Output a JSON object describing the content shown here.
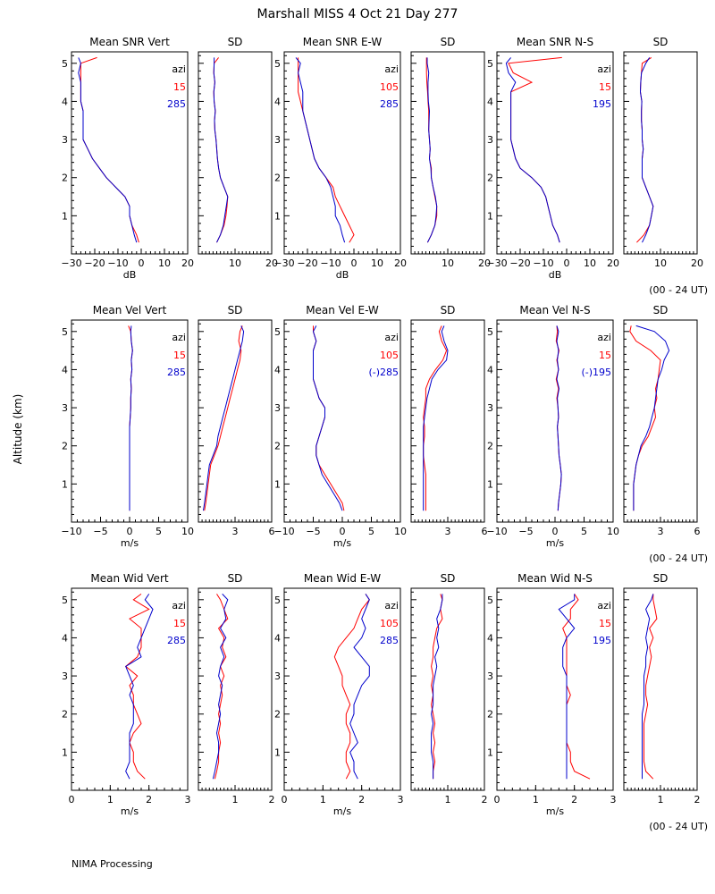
{
  "header": {
    "title": "Marshall MISS    4 Oct 21 Day 277",
    "ylabel": "Altitude (km)",
    "footer": "NIMA Processing"
  },
  "colors": {
    "series_a": "#ff0000",
    "series_b": "#0000cc",
    "axes": "#000000"
  },
  "rows": [
    {
      "time_label": "(00 - 24 UT)",
      "panels": [
        {
          "title": "Mean SNR Vert",
          "type": "mean",
          "xlim": [
            -30,
            20
          ],
          "xticks": [
            -30,
            -20,
            -10,
            0,
            10,
            20
          ],
          "xlabel": "dB",
          "legend": {
            "head": "azi",
            "a": "15",
            "b": "285"
          }
        },
        {
          "title": "SD",
          "type": "sd",
          "xlim": [
            0,
            20
          ],
          "xticks": [
            10,
            20
          ],
          "xlabel": ""
        },
        {
          "title": "Mean SNR E-W",
          "type": "mean",
          "xlim": [
            -30,
            20
          ],
          "xticks": [
            -30,
            -20,
            -10,
            0,
            10,
            20
          ],
          "xlabel": "dB",
          "legend": {
            "head": "azi",
            "a": "105",
            "b": "285"
          }
        },
        {
          "title": "SD",
          "type": "sd",
          "xlim": [
            0,
            20
          ],
          "xticks": [
            10,
            20
          ],
          "xlabel": ""
        },
        {
          "title": "Mean SNR N-S",
          "type": "mean",
          "xlim": [
            -30,
            20
          ],
          "xticks": [
            -30,
            -20,
            -10,
            0,
            10,
            20
          ],
          "xlabel": "dB",
          "legend": {
            "head": "azi",
            "a": "15",
            "b": "195"
          }
        },
        {
          "title": "SD",
          "type": "sd",
          "xlim": [
            0,
            20
          ],
          "xticks": [
            10,
            20
          ],
          "xlabel": ""
        }
      ]
    },
    {
      "time_label": "(00 - 24 UT)",
      "panels": [
        {
          "title": "Mean Vel Vert",
          "type": "mean",
          "xlim": [
            -10,
            10
          ],
          "xticks": [
            -10,
            -5,
            0,
            5,
            10
          ],
          "xlabel": "m/s",
          "legend": {
            "head": "azi",
            "a": "15",
            "b": "285"
          }
        },
        {
          "title": "SD",
          "type": "sd",
          "xlim": [
            0,
            6
          ],
          "xticks": [
            3,
            6
          ],
          "xlabel": ""
        },
        {
          "title": "Mean Vel E-W",
          "type": "mean",
          "xlim": [
            -10,
            10
          ],
          "xticks": [
            -10,
            -5,
            0,
            5,
            10
          ],
          "xlabel": "m/s",
          "legend": {
            "head": "azi",
            "a": "105",
            "b": "(-)285"
          }
        },
        {
          "title": "SD",
          "type": "sd",
          "xlim": [
            0,
            6
          ],
          "xticks": [
            3,
            6
          ],
          "xlabel": ""
        },
        {
          "title": "Mean Vel N-S",
          "type": "mean",
          "xlim": [
            -10,
            10
          ],
          "xticks": [
            -10,
            -5,
            0,
            5,
            10
          ],
          "xlabel": "m/s",
          "legend": {
            "head": "azi",
            "a": "15",
            "b": "(-)195"
          }
        },
        {
          "title": "SD",
          "type": "sd",
          "xlim": [
            0,
            6
          ],
          "xticks": [
            3,
            6
          ],
          "xlabel": ""
        }
      ]
    },
    {
      "time_label": "(00 - 24 UT)",
      "panels": [
        {
          "title": "Mean Wid Vert",
          "type": "mean",
          "xlim": [
            0,
            3
          ],
          "xticks": [
            0,
            1,
            2,
            3
          ],
          "xlabel": "m/s",
          "legend": {
            "head": "azi",
            "a": "15",
            "b": "285"
          }
        },
        {
          "title": "SD",
          "type": "sd",
          "xlim": [
            0,
            2
          ],
          "xticks": [
            1,
            2
          ],
          "xlabel": ""
        },
        {
          "title": "Mean Wid E-W",
          "type": "mean",
          "xlim": [
            0,
            3
          ],
          "xticks": [
            0,
            1,
            2,
            3
          ],
          "xlabel": "m/s",
          "legend": {
            "head": "azi",
            "a": "105",
            "b": "285"
          }
        },
        {
          "title": "SD",
          "type": "sd",
          "xlim": [
            0,
            2
          ],
          "xticks": [
            1,
            2
          ],
          "xlabel": ""
        },
        {
          "title": "Mean Wid N-S",
          "type": "mean",
          "xlim": [
            0,
            3
          ],
          "xticks": [
            0,
            1,
            2,
            3
          ],
          "xlabel": "m/s",
          "legend": {
            "head": "azi",
            "a": "15",
            "b": "195"
          }
        },
        {
          "title": "SD",
          "type": "sd",
          "xlim": [
            0,
            2
          ],
          "xticks": [
            1,
            2
          ],
          "xlabel": ""
        }
      ]
    }
  ],
  "chart_data": {
    "type": "line",
    "ylim": [
      0,
      5.3
    ],
    "yticks": [
      1,
      2,
      3,
      4,
      5
    ],
    "altitudes": [
      0.3,
      0.5,
      0.75,
      1.0,
      1.25,
      1.5,
      1.75,
      2.0,
      2.25,
      2.5,
      2.75,
      3.0,
      3.25,
      3.5,
      3.75,
      4.0,
      4.25,
      4.5,
      4.75,
      5.0,
      5.15
    ],
    "panels": [
      {
        "a": [
          -1,
          -2,
          -4,
          -5,
          -5,
          -7,
          -11,
          -15,
          -18,
          -21,
          -23,
          -25,
          -25,
          -25,
          -25,
          -26,
          -26,
          -26,
          -26,
          -26,
          -19
        ],
        "b": [
          -2,
          -3,
          -4,
          -5,
          -5,
          -7,
          -11,
          -15,
          -18,
          -21,
          -23,
          -25,
          -25,
          -25,
          -25,
          -26,
          -26,
          -26,
          -27,
          -26,
          -27
        ]
      },
      {
        "a": [
          5,
          6,
          7,
          7.5,
          7.8,
          8,
          7,
          6,
          5.5,
          5.2,
          5,
          4.8,
          4.5,
          4.4,
          4.6,
          4.3,
          4.2,
          4.5,
          4.2,
          4.3,
          5.5
        ],
        "b": [
          5,
          6,
          6.8,
          7.2,
          7.6,
          8,
          7,
          6,
          5.5,
          5.2,
          5,
          4.8,
          4.5,
          4.4,
          4.6,
          4.3,
          4.2,
          4.5,
          4.2,
          4.3,
          4.3
        ]
      },
      {
        "a": [
          -2,
          0,
          -2,
          -4,
          -6,
          -8,
          -9,
          -12,
          -15,
          -17,
          -18,
          -19,
          -20,
          -21,
          -22,
          -23,
          -24,
          -24,
          -24,
          -24,
          -24
        ],
        "b": [
          -4,
          -5,
          -6,
          -8,
          -8,
          -9,
          -10,
          -12,
          -15,
          -17,
          -18,
          -19,
          -20,
          -21,
          -22,
          -22,
          -22,
          -23,
          -24,
          -23,
          -25
        ]
      },
      {
        "a": [
          4.5,
          5.5,
          6.5,
          7,
          7,
          6.5,
          6,
          5.5,
          5.5,
          5,
          5.2,
          5,
          4.8,
          4.8,
          4.8,
          4.6,
          4.5,
          4.3,
          4.2,
          4.2,
          4.2
        ],
        "b": [
          4.5,
          5.5,
          6.5,
          6.8,
          7,
          6.6,
          6,
          5.5,
          5.4,
          5,
          5.2,
          5,
          4.8,
          4.9,
          5,
          4.7,
          4.6,
          4.6,
          4.8,
          4.4,
          4.4
        ]
      },
      {
        "a": [
          -3,
          -4,
          -6,
          -7,
          -8,
          -9,
          -11,
          -15,
          -20,
          -22,
          -23,
          -24,
          -24,
          -24,
          -24,
          -24,
          -24,
          -15,
          -23,
          -25,
          -2
        ],
        "b": [
          -3,
          -4,
          -6,
          -7,
          -8,
          -9,
          -11,
          -15,
          -20,
          -22,
          -23,
          -24,
          -24,
          -24,
          -24,
          -24,
          -24,
          -22,
          -25,
          -26,
          -24
        ]
      },
      {
        "a": [
          3.5,
          5.5,
          7,
          7.5,
          8,
          7,
          6,
          5,
          5,
          5,
          5.3,
          5,
          5,
          4.8,
          4.8,
          4.9,
          4.5,
          4.6,
          4.8,
          5,
          7.5
        ],
        "b": [
          5,
          6,
          7,
          7.5,
          8,
          7,
          6,
          5,
          5,
          5,
          5.3,
          5,
          5,
          4.8,
          4.8,
          4.9,
          4.5,
          4.6,
          4.8,
          6,
          7
        ]
      },
      {
        "a": [
          0,
          0,
          0,
          0,
          0,
          0,
          0,
          0,
          0,
          0,
          0.1,
          0.2,
          0.2,
          0.3,
          0.2,
          0.4,
          0.3,
          0.5,
          0.3,
          0.2,
          -0.2
        ],
        "b": [
          0,
          0,
          0,
          0,
          0,
          0,
          0,
          0,
          0,
          0,
          0.1,
          0.2,
          0.2,
          0.3,
          0.2,
          0.4,
          0.3,
          0.5,
          0.3,
          0.2,
          0.3
        ]
      },
      {
        "a": [
          0.5,
          0.6,
          0.7,
          0.8,
          0.9,
          1.0,
          1.3,
          1.6,
          1.8,
          2.0,
          2.2,
          2.4,
          2.6,
          2.8,
          3.0,
          3.2,
          3.4,
          3.5,
          3.3,
          3.4,
          3.6
        ],
        "b": [
          0.4,
          0.5,
          0.6,
          0.7,
          0.8,
          0.9,
          1.2,
          1.5,
          1.6,
          1.8,
          2.0,
          2.2,
          2.4,
          2.6,
          2.8,
          3.0,
          3.2,
          3.4,
          3.6,
          3.7,
          3.5
        ]
      },
      {
        "a": [
          0.3,
          0,
          -1,
          -2,
          -3,
          -4,
          -4.5,
          -4.5,
          -4,
          -3.5,
          -3,
          -3,
          -4,
          -4.5,
          -5,
          -5,
          -5,
          -5,
          -4.5,
          -5,
          -5
        ],
        "b": [
          0,
          -0.5,
          -1.5,
          -2.5,
          -3.5,
          -4,
          -4.5,
          -4.5,
          -4,
          -3.5,
          -3,
          -3,
          -4,
          -4.5,
          -5,
          -5,
          -5,
          -5,
          -4.5,
          -5,
          -4.5
        ]
      },
      {
        "a": [
          1.2,
          1.2,
          1.2,
          1.2,
          1.2,
          1.1,
          1.0,
          1.0,
          1.1,
          1.1,
          1.0,
          1.1,
          1.2,
          1.2,
          1.5,
          2.0,
          2.6,
          2.9,
          2.5,
          2.3,
          2.5
        ],
        "b": [
          1.0,
          1.0,
          1.0,
          1.0,
          1.0,
          1.0,
          1.0,
          1.0,
          1.0,
          1.0,
          1.1,
          1.2,
          1.3,
          1.5,
          1.7,
          2.2,
          2.9,
          3.0,
          2.7,
          2.5,
          2.7
        ]
      },
      {
        "a": [
          0.5,
          0.6,
          0.8,
          1.0,
          1.1,
          0.9,
          0.7,
          0.6,
          0.5,
          0.4,
          0.6,
          0.5,
          0.3,
          0.6,
          0.2,
          0.6,
          0.3,
          0.7,
          0.2,
          0.4,
          0.3
        ],
        "b": [
          0.5,
          0.6,
          0.8,
          1.0,
          1.1,
          0.9,
          0.7,
          0.6,
          0.5,
          0.4,
          0.6,
          0.5,
          0.4,
          0.7,
          0.3,
          0.6,
          0.4,
          0.6,
          0.3,
          0.6,
          0.3
        ]
      },
      {
        "a": [
          0.8,
          0.8,
          0.8,
          0.8,
          0.9,
          1.0,
          1.2,
          1.5,
          2.0,
          2.3,
          2.6,
          2.5,
          2.7,
          2.6,
          2.8,
          2.9,
          3.0,
          2.2,
          1.0,
          0.5,
          0.6
        ],
        "b": [
          0.8,
          0.8,
          0.8,
          0.8,
          0.9,
          1.0,
          1.2,
          1.4,
          1.8,
          2.1,
          2.3,
          2.5,
          2.6,
          2.7,
          2.8,
          3.1,
          3.3,
          3.7,
          3.4,
          2.5,
          1.0
        ]
      },
      {
        "a": [
          1.9,
          1.7,
          1.6,
          1.6,
          1.5,
          1.6,
          1.8,
          1.7,
          1.6,
          1.6,
          1.5,
          1.7,
          1.4,
          1.7,
          1.8,
          1.8,
          1.8,
          1.5,
          2.0,
          1.6,
          1.8
        ],
        "b": [
          1.5,
          1.4,
          1.5,
          1.5,
          1.5,
          1.5,
          1.6,
          1.6,
          1.6,
          1.5,
          1.6,
          1.5,
          1.4,
          1.8,
          1.7,
          1.8,
          1.9,
          2.0,
          2.1,
          1.9,
          2.0
        ]
      },
      {
        "a": [
          0.45,
          0.5,
          0.55,
          0.55,
          0.6,
          0.55,
          0.6,
          0.55,
          0.6,
          0.65,
          0.6,
          0.7,
          0.6,
          0.75,
          0.65,
          0.7,
          0.55,
          0.8,
          0.7,
          0.6,
          0.5
        ],
        "b": [
          0.4,
          0.45,
          0.5,
          0.55,
          0.55,
          0.5,
          0.55,
          0.6,
          0.55,
          0.6,
          0.65,
          0.55,
          0.6,
          0.7,
          0.6,
          0.75,
          0.6,
          0.75,
          0.7,
          0.8,
          0.65
        ]
      },
      {
        "a": [
          1.6,
          1.7,
          1.6,
          1.6,
          1.7,
          1.7,
          1.6,
          1.6,
          1.7,
          1.6,
          1.5,
          1.5,
          1.4,
          1.3,
          1.4,
          1.6,
          1.8,
          1.9,
          2.0,
          2.2,
          2.1
        ],
        "b": [
          1.9,
          1.8,
          1.8,
          1.7,
          1.9,
          1.8,
          1.7,
          1.8,
          1.8,
          1.9,
          2.0,
          2.2,
          2.2,
          2.0,
          1.8,
          2.0,
          2.1,
          2.0,
          2.1,
          2.2,
          2.1
        ]
      },
      {
        "a": [
          0.6,
          0.6,
          0.65,
          0.6,
          0.65,
          0.6,
          0.65,
          0.6,
          0.55,
          0.6,
          0.55,
          0.6,
          0.55,
          0.6,
          0.6,
          0.65,
          0.7,
          0.85,
          0.8,
          0.85,
          0.8
        ],
        "b": [
          0.6,
          0.6,
          0.6,
          0.55,
          0.55,
          0.55,
          0.6,
          0.55,
          0.6,
          0.6,
          0.6,
          0.65,
          0.7,
          0.65,
          0.75,
          0.7,
          0.75,
          0.7,
          0.8,
          0.85,
          0.85
        ]
      },
      {
        "a": [
          2.4,
          2.0,
          1.9,
          1.9,
          1.8,
          1.8,
          1.8,
          1.8,
          1.8,
          1.9,
          1.8,
          1.8,
          1.8,
          1.8,
          1.8,
          1.8,
          1.7,
          1.9,
          1.9,
          2.1,
          2.0
        ],
        "b": [
          1.8,
          1.8,
          1.8,
          1.8,
          1.8,
          1.8,
          1.8,
          1.8,
          1.8,
          1.8,
          1.8,
          1.8,
          1.7,
          1.7,
          1.7,
          1.8,
          2.0,
          1.8,
          1.6,
          2.0,
          2.0
        ]
      },
      {
        "a": [
          0.8,
          0.6,
          0.55,
          0.55,
          0.55,
          0.55,
          0.55,
          0.6,
          0.65,
          0.6,
          0.6,
          0.65,
          0.7,
          0.75,
          0.7,
          0.8,
          0.7,
          0.9,
          0.85,
          0.8,
          0.8
        ],
        "b": [
          0.5,
          0.5,
          0.5,
          0.5,
          0.5,
          0.5,
          0.5,
          0.5,
          0.55,
          0.55,
          0.55,
          0.55,
          0.6,
          0.6,
          0.65,
          0.6,
          0.65,
          0.7,
          0.6,
          0.75,
          0.8
        ]
      }
    ]
  }
}
